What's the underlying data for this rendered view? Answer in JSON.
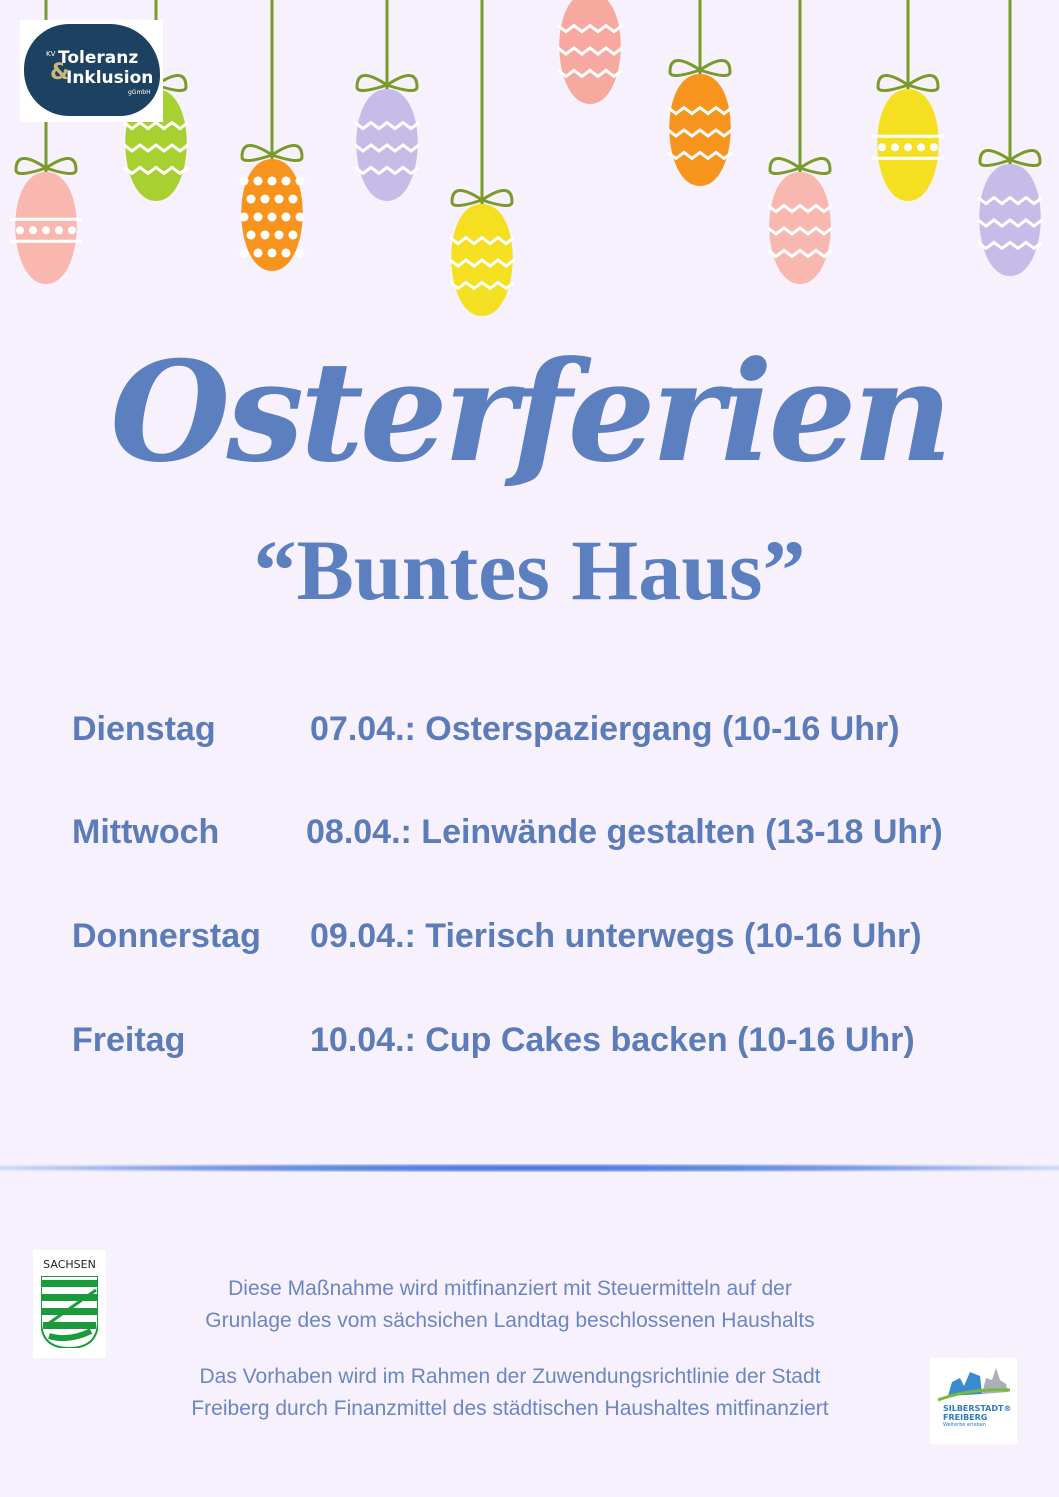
{
  "logo": {
    "kv": "KV",
    "line1": "Toleranz",
    "amp": "&",
    "line2": "Inklusion",
    "suffix": "gGmbH"
  },
  "title": "Osterferien",
  "subtitle": "“Buntes Haus”",
  "schedule": [
    {
      "day": "Dienstag",
      "event": "07.04.: Osterspaziergang (10-16 Uhr)"
    },
    {
      "day": "Mittwoch",
      "event": "08.04.: Leinwände gestalten (13-18 Uhr)"
    },
    {
      "day": "Donnerstag",
      "event": "09.04.: Tierisch unterwegs (10-16 Uhr)"
    },
    {
      "day": "Freitag",
      "event": "10.04.: Cup Cakes backen (10-16 Uhr)"
    }
  ],
  "footer": {
    "sachsen_label": "SACHSEN",
    "text1_line1": "Diese Maßnahme wird mitfinanziert mit Steuermitteln auf der",
    "text1_line2": "Grunlage des vom sächsichen Landtag beschlossenen Haushalts",
    "text2_line1": "Das Vorhaben wird im Rahmen der Zuwendungsrichtlinie der Stadt",
    "text2_line2": "Freiberg durch Finanzmittel des städtischen Haushaltes mitfinanziert",
    "freiberg_line1": "SILBERSTADT®",
    "freiberg_line2": "FREIBERG",
    "freiberg_tagline": "Welterbe erleben"
  },
  "colors": {
    "background": "#f6f1fc",
    "text_blue": "#5b7cb8",
    "divider": "#3d6fe0"
  }
}
